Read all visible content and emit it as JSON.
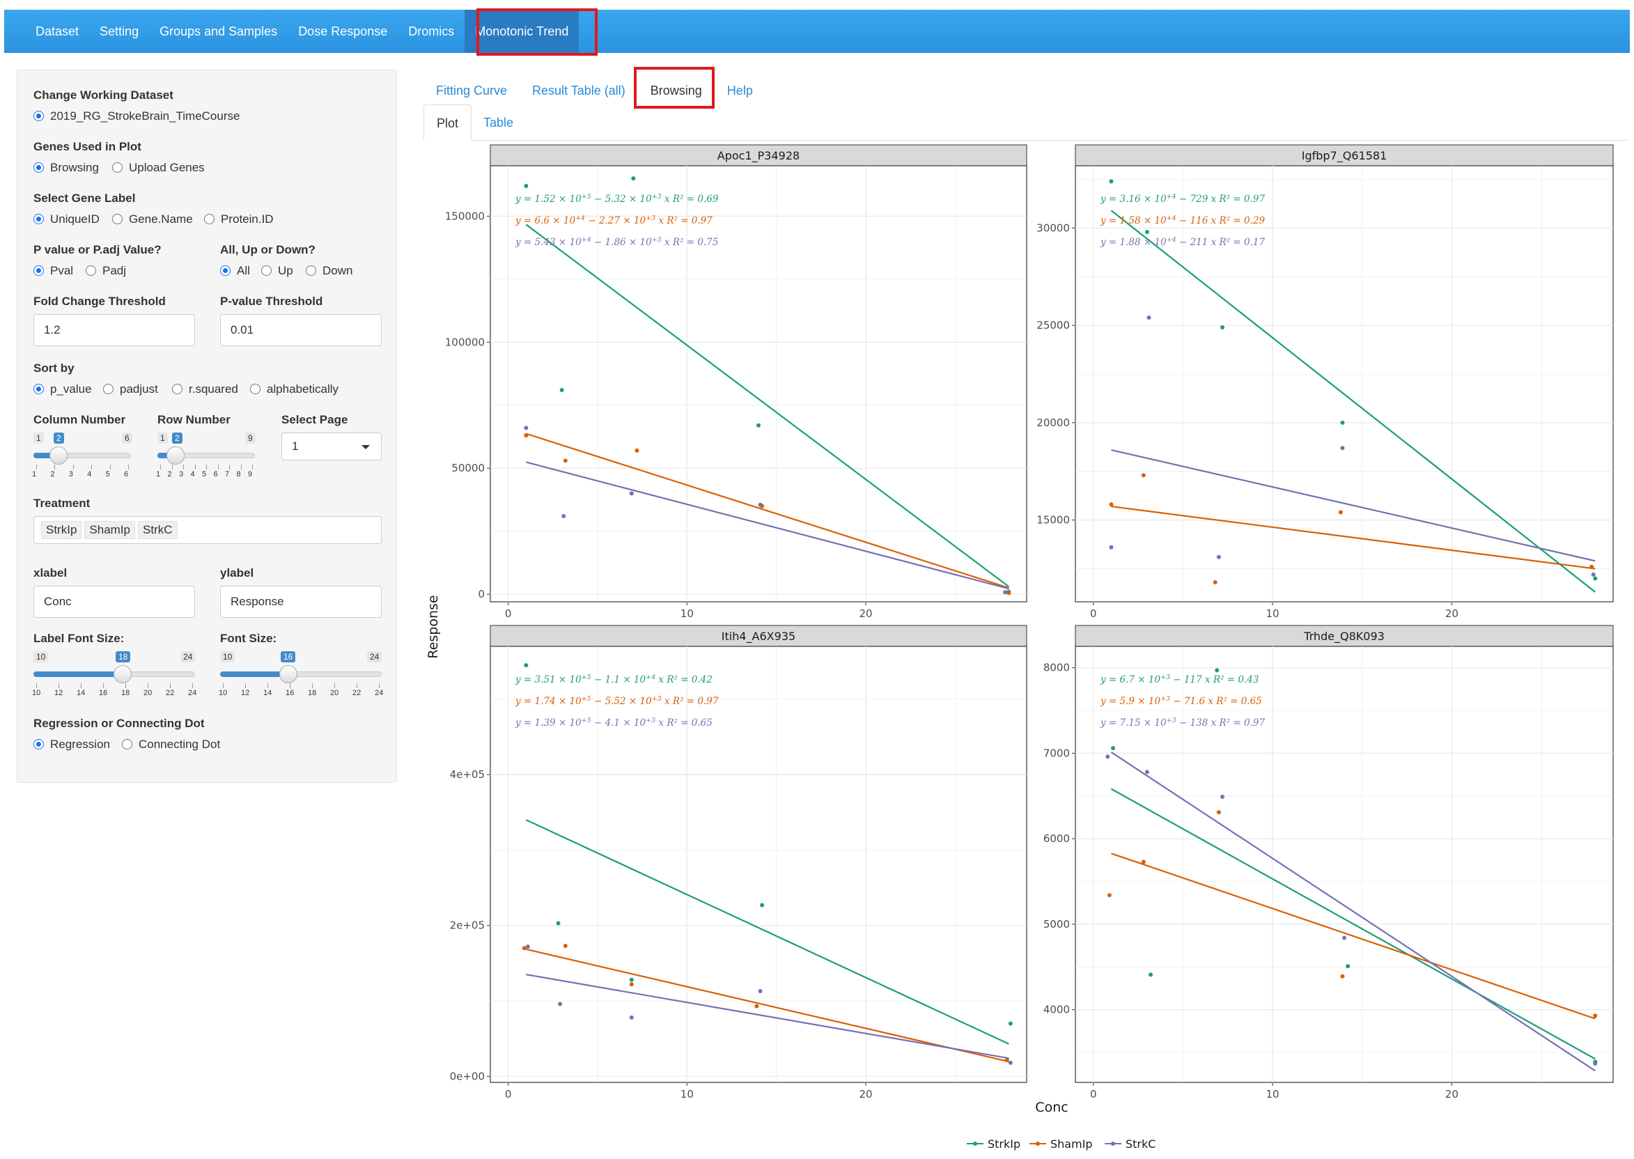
{
  "navbar": {
    "items": [
      "Dataset",
      "Setting",
      "Groups and Samples",
      "Dose Response",
      "Dromics",
      "Monotonic Trend"
    ],
    "active": "Monotonic Trend",
    "color": "#2b93e0"
  },
  "sidebar": {
    "working_dataset": {
      "label": "Change Working Dataset",
      "options": [
        "2019_RG_StrokeBrain_TimeCourse"
      ]
    },
    "genes_used": {
      "label": "Genes Used in Plot",
      "options": [
        "Browsing",
        "Upload Genes"
      ]
    },
    "gene_label": {
      "label": "Select Gene Label",
      "options": [
        "UniqueID",
        "Gene.Name",
        "Protein.ID"
      ]
    },
    "pval_type": {
      "label": "P value or P.adj Value?",
      "options": [
        "Pval",
        "Padj"
      ]
    },
    "direction": {
      "label": "All, Up or Down?",
      "options": [
        "All",
        "Up",
        "Down"
      ]
    },
    "fc_threshold": {
      "label": "Fold Change Threshold",
      "value": "1.2"
    },
    "pval_threshold": {
      "label": "P-value Threshold",
      "value": "0.01"
    },
    "sort_by": {
      "label": "Sort by",
      "options": [
        "p_value",
        "padjust",
        "r.squared",
        "alphabetically"
      ]
    },
    "column_number": {
      "label": "Column Number",
      "min": "1",
      "max": "6",
      "value": "2",
      "ticks": [
        "1",
        "2",
        "3",
        "4",
        "5",
        "6"
      ]
    },
    "row_number": {
      "label": "Row Number",
      "min": "1",
      "max": "9",
      "value": "2",
      "ticks": [
        "1",
        "2",
        "3",
        "4",
        "5",
        "6",
        "7",
        "8",
        "9"
      ]
    },
    "select_page": {
      "label": "Select Page",
      "value": "1"
    },
    "treatment": {
      "label": "Treatment",
      "chips": [
        "StrkIp",
        "ShamIp",
        "StrkC"
      ]
    },
    "xlabel": {
      "label": "xlabel",
      "value": "Conc"
    },
    "ylabel": {
      "label": "ylabel",
      "value": "Response"
    },
    "label_font_size": {
      "label": "Label Font Size:",
      "min": "10",
      "max": "24",
      "value": "18",
      "ticks": [
        "10",
        "12",
        "14",
        "16",
        "18",
        "20",
        "22",
        "24"
      ]
    },
    "font_size": {
      "label": "Font Size:",
      "min": "10",
      "max": "24",
      "value": "16",
      "ticks": [
        "10",
        "12",
        "14",
        "16",
        "18",
        "20",
        "22",
        "24"
      ]
    },
    "regression": {
      "label": "Regression or Connecting Dot",
      "options": [
        "Regression",
        "Connecting Dot"
      ]
    }
  },
  "tabs": {
    "items": [
      "Fitting Curve",
      "Result Table (all)",
      "Browsing",
      "Help"
    ],
    "active": "Browsing"
  },
  "subtabs": {
    "items": [
      "Plot",
      "Table"
    ],
    "active": "Plot"
  },
  "chart_data": {
    "type": "scatter",
    "xlabel": "Conc",
    "ylabel": "Response",
    "colors": {
      "StrkIp": "#1b9e77",
      "ShamIp": "#d95f02",
      "StrkC": "#7570b3"
    },
    "legend": {
      "position": "bottom",
      "entries": [
        "StrkIp",
        "ShamIp",
        "StrkC"
      ]
    },
    "panels": [
      {
        "title": "Apoc1_P34928",
        "xlim": [
          -1,
          29
        ],
        "ylim": [
          -3000,
          170000
        ],
        "yticks": [
          0,
          50000,
          100000,
          150000
        ],
        "ytick_labels": [
          "0",
          "50000",
          "100000",
          "150000"
        ],
        "xticks": [
          0,
          10,
          20
        ],
        "xtick_labels": [
          "0",
          "10",
          "20"
        ],
        "equations": [
          {
            "series": "StrkIp",
            "text": "y = 1.52 × 10^+5 − 5.32 × 10^+3 x   R² = 0.69"
          },
          {
            "series": "ShamIp",
            "text": "y = 6.6 × 10^+4 − 2.27 × 10^+3 x   R² = 0.97"
          },
          {
            "series": "StrkC",
            "text": "y = 5.43 × 10^+4 − 1.86 × 10^+3 x   R² = 0.75"
          }
        ],
        "series": [
          {
            "name": "StrkIp",
            "points": [
              [
                1,
                162000
              ],
              [
                3,
                81000
              ],
              [
                7,
                165000
              ],
              [
                14,
                67000
              ],
              [
                28,
                1000
              ]
            ],
            "fit": [
              [
                1,
                146700
              ],
              [
                28,
                3000
              ]
            ]
          },
          {
            "name": "ShamIp",
            "points": [
              [
                1,
                63000
              ],
              [
                3.2,
                53000
              ],
              [
                7.2,
                57000
              ],
              [
                14.2,
                35000
              ],
              [
                28,
                500
              ]
            ],
            "fit": [
              [
                1,
                63700
              ],
              [
                28,
                2500
              ]
            ]
          },
          {
            "name": "StrkC",
            "points": [
              [
                1,
                66000
              ],
              [
                3.1,
                31000
              ],
              [
                6.9,
                40000
              ],
              [
                14.1,
                35500
              ],
              [
                27.8,
                800
              ]
            ],
            "fit": [
              [
                1,
                52400
              ],
              [
                28,
                2200
              ]
            ]
          }
        ]
      },
      {
        "title": "Igfbp7_Q61581",
        "xlim": [
          -1,
          29
        ],
        "ylim": [
          10800,
          33200
        ],
        "yticks": [
          15000,
          20000,
          25000,
          30000
        ],
        "ytick_labels": [
          "15000",
          "20000",
          "25000",
          "30000"
        ],
        "xticks": [
          0,
          10,
          20
        ],
        "xtick_labels": [
          "0",
          "10",
          "20"
        ],
        "equations": [
          {
            "series": "StrkIp",
            "text": "y = 3.16 × 10^+4 − 729 x   R² = 0.97"
          },
          {
            "series": "ShamIp",
            "text": "y = 1.58 × 10^+4 − 116 x   R² = 0.29"
          },
          {
            "series": "StrkC",
            "text": "y = 1.88 × 10^+4 − 211 x   R² = 0.17"
          }
        ],
        "series": [
          {
            "name": "StrkIp",
            "points": [
              [
                1,
                32400
              ],
              [
                3,
                29800
              ],
              [
                7.2,
                24900
              ],
              [
                13.9,
                20000
              ],
              [
                28,
                12000
              ]
            ],
            "fit": [
              [
                1,
                30900
              ],
              [
                28,
                11300
              ]
            ]
          },
          {
            "name": "ShamIp",
            "points": [
              [
                1,
                15800
              ],
              [
                2.8,
                17300
              ],
              [
                6.8,
                11800
              ],
              [
                13.8,
                15400
              ],
              [
                27.8,
                12600
              ]
            ],
            "fit": [
              [
                1,
                15700
              ],
              [
                28,
                12500
              ]
            ]
          },
          {
            "name": "StrkC",
            "points": [
              [
                1,
                13600
              ],
              [
                3.1,
                25400
              ],
              [
                7,
                13100
              ],
              [
                13.9,
                18700
              ],
              [
                27.9,
                12200
              ]
            ],
            "fit": [
              [
                1,
                18600
              ],
              [
                28,
                12900
              ]
            ]
          }
        ]
      },
      {
        "title": "Itih4_A6X935",
        "xlim": [
          -1,
          29
        ],
        "ylim": [
          -8000,
          570000
        ],
        "yticks": [
          0,
          200000,
          400000
        ],
        "ytick_labels": [
          "0e+00",
          "2e+05",
          "4e+05"
        ],
        "xticks": [
          0,
          10,
          20
        ],
        "xtick_labels": [
          "0",
          "10",
          "20"
        ],
        "equations": [
          {
            "series": "StrkIp",
            "text": "y = 3.51 × 10^+5 − 1.1 × 10^+4 x   R² = 0.42"
          },
          {
            "series": "ShamIp",
            "text": "y = 1.74 × 10^+5 − 5.52 × 10^+3 x   R² = 0.97"
          },
          {
            "series": "StrkC",
            "text": "y = 1.39 × 10^+5 − 4.1 × 10^+3 x   R² = 0.65"
          }
        ],
        "series": [
          {
            "name": "StrkIp",
            "points": [
              [
                1,
                545000
              ],
              [
                2.8,
                203000
              ],
              [
                6.9,
                128000
              ],
              [
                14.2,
                227000
              ],
              [
                28.1,
                70000
              ]
            ],
            "fit": [
              [
                1,
                340000
              ],
              [
                28,
                43000
              ]
            ]
          },
          {
            "name": "ShamIp",
            "points": [
              [
                0.9,
                170000
              ],
              [
                3.2,
                173000
              ],
              [
                6.9,
                122000
              ],
              [
                13.9,
                93000
              ],
              [
                27.9,
                22000
              ]
            ],
            "fit": [
              [
                1,
                168500
              ],
              [
                28,
                19500
              ]
            ]
          },
          {
            "name": "StrkC",
            "points": [
              [
                1.1,
                172000
              ],
              [
                2.9,
                96000
              ],
              [
                6.9,
                78000
              ],
              [
                14.1,
                113000
              ],
              [
                28.1,
                18000
              ]
            ],
            "fit": [
              [
                1,
                135000
              ],
              [
                28,
                24000
              ]
            ]
          }
        ]
      },
      {
        "title": "Trhde_Q8K093",
        "xlim": [
          -1,
          29
        ],
        "ylim": [
          3150,
          8250
        ],
        "yticks": [
          4000,
          5000,
          6000,
          7000,
          8000
        ],
        "ytick_labels": [
          "4000",
          "5000",
          "6000",
          "7000",
          "8000"
        ],
        "xticks": [
          0,
          10,
          20
        ],
        "xtick_labels": [
          "0",
          "10",
          "20"
        ],
        "equations": [
          {
            "series": "StrkIp",
            "text": "y = 6.7 × 10^+3 − 117 x   R² = 0.43"
          },
          {
            "series": "ShamIp",
            "text": "y = 5.9 × 10^+3 − 71.6 x   R² = 0.65"
          },
          {
            "series": "StrkC",
            "text": "y = 7.15 × 10^+3 − 138 x   R² = 0.97"
          }
        ],
        "series": [
          {
            "name": "StrkIp",
            "points": [
              [
                1.1,
                7060
              ],
              [
                3.2,
                4410
              ],
              [
                6.9,
                7970
              ],
              [
                14.2,
                4510
              ],
              [
                28,
                3390
              ]
            ],
            "fit": [
              [
                1,
                6583
              ],
              [
                28,
                3424
              ]
            ]
          },
          {
            "name": "ShamIp",
            "points": [
              [
                0.9,
                5340
              ],
              [
                2.8,
                5730
              ],
              [
                7,
                6310
              ],
              [
                13.9,
                4390
              ],
              [
                28,
                3930
              ]
            ],
            "fit": [
              [
                1,
                5828
              ],
              [
                28,
                3895
              ]
            ]
          },
          {
            "name": "StrkC",
            "points": [
              [
                0.8,
                6960
              ],
              [
                3,
                6780
              ],
              [
                7.2,
                6490
              ],
              [
                14,
                4840
              ],
              [
                28,
                3370
              ]
            ],
            "fit": [
              [
                1,
                7012
              ],
              [
                28,
                3286
              ]
            ]
          }
        ]
      }
    ]
  }
}
